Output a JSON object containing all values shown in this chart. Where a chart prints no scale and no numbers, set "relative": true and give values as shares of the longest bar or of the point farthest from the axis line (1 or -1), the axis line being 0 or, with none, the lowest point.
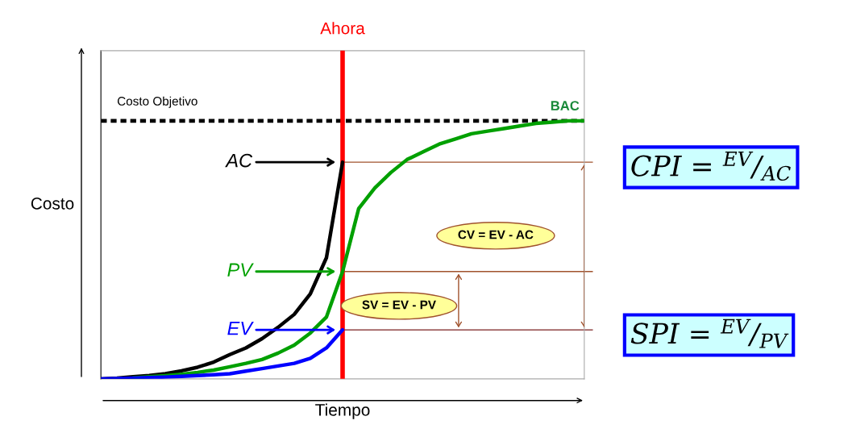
{
  "chart_data": {
    "type": "line",
    "relative": true,
    "xlabel": "Tiempo",
    "ylabel": "Costo",
    "legend": "center",
    "line_style": "solid",
    "marker": "none",
    "categories": [
      null,
      null,
      null,
      null,
      null,
      null,
      null,
      null,
      null,
      null,
      null,
      null,
      null,
      null,
      null,
      null,
      null,
      null,
      null,
      null,
      null,
      null,
      null,
      null,
      null,
      null,
      null,
      null,
      null,
      null,
      null
    ],
    "series": [
      {
        "name": "AC",
        "color": "#000000",
        "values": [
          0,
          0.003,
          0.008,
          0.013,
          0.02,
          0.031,
          0.045,
          0.065,
          0.094,
          0.12,
          0.156,
          0.2,
          0.25,
          0.33,
          0.47,
          0.84,
          null,
          null,
          null,
          null,
          null,
          null,
          null,
          null,
          null,
          null,
          null,
          null,
          null,
          null,
          null
        ]
      },
      {
        "name": "PV",
        "color": "#00a000",
        "values": [
          null,
          null,
          0.004,
          0.008,
          0.0125,
          0.018,
          0.025,
          0.034,
          0.047,
          0.06,
          0.075,
          0.1,
          0.131,
          0.178,
          0.24,
          0.416,
          0.66,
          0.74,
          0.8,
          0.85,
          0.88,
          0.91,
          0.93,
          0.95,
          0.96,
          0.97,
          0.98,
          0.99,
          0.995,
          1.0,
          1.0
        ]
      },
      {
        "name": "EV",
        "color": "#0000ff",
        "values": [
          0,
          0.001,
          0.003,
          0.005,
          0.007,
          0.01,
          0.013,
          0.016,
          0.02,
          0.03,
          0.04,
          0.05,
          0.06,
          0.08,
          0.12,
          0.19,
          null,
          null,
          null,
          null,
          null,
          null,
          null,
          null,
          null,
          null,
          null,
          null,
          null,
          null,
          null
        ]
      }
    ],
    "ref_lines": [
      {
        "axis": "y",
        "value": 1.0,
        "label": "Costo Objetivo",
        "color": "#000000",
        "line_style": "dotted"
      },
      {
        "axis": "y",
        "value": 0.84,
        "label": null,
        "color": "#a0522d",
        "line_style": "solid"
      },
      {
        "axis": "y",
        "value": 0.416,
        "label": null,
        "color": "#a0522d",
        "line_style": "solid"
      },
      {
        "axis": "y",
        "value": 0.19,
        "label": null,
        "color": "#7b2020",
        "line_style": "solid"
      }
    ],
    "annotations": [
      "Ahora",
      {
        "text": "BAC",
        "y": 1.0
      },
      "CV = EV - AC",
      "SV = EV - PV",
      "CPI = $^{EV}$/$_{AC}$",
      "SPI = $^{EV}$/$_{PV}$"
    ]
  }
}
